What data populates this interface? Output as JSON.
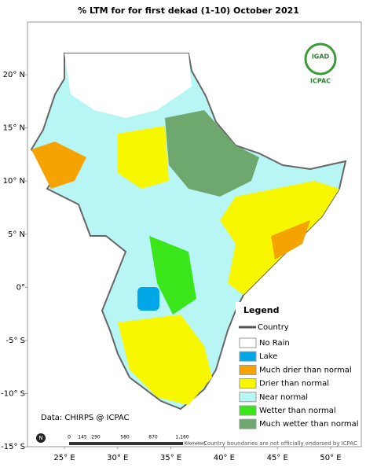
{
  "title": "% LTM for  for first dekad (1-10) October 2021",
  "lat_labels": [
    "20° N",
    "15° N",
    "10° N",
    "5° N",
    "0°",
    "-5° S",
    "-10° S",
    "-15° S"
  ],
  "lon_labels": [
    "25° E",
    "30° E",
    "35° E",
    "40° E",
    "45° E",
    "50° E"
  ],
  "logo": {
    "name": "IGAD",
    "org": "ICPAC"
  },
  "legend": {
    "title": "Legend",
    "country": "Country",
    "items": [
      {
        "label": "No Rain",
        "color": "#ffffff"
      },
      {
        "label": "Lake",
        "color": "#00a6e6"
      },
      {
        "label": "Much drier than normal",
        "color": "#f5a300"
      },
      {
        "label": "Drier than normal",
        "color": "#f7f700"
      },
      {
        "label": "Near normal",
        "color": "#b8f5f5"
      },
      {
        "label": "Wetter than normal",
        "color": "#3ae61a"
      },
      {
        "label": "Much wetter than normal",
        "color": "#6fa86f"
      }
    ]
  },
  "source": "Data: CHIRPS @ ICPAC",
  "north": "N",
  "scale": {
    "labels": [
      "0",
      "145",
      "290",
      "580",
      "870",
      "1,160"
    ],
    "unit": "Kilometers"
  },
  "disclaimer": "Country boundaries are not officially endorsed by ICPAC"
}
